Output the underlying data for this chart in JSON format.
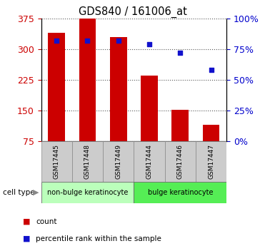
{
  "title": "GDS840 / 161006_at",
  "samples": [
    "GSM17445",
    "GSM17448",
    "GSM17449",
    "GSM17444",
    "GSM17446",
    "GSM17447"
  ],
  "counts": [
    340,
    375,
    330,
    235,
    152,
    115
  ],
  "percentiles": [
    82,
    82,
    82,
    79,
    72,
    58
  ],
  "bar_color": "#cc0000",
  "dot_color": "#1111cc",
  "left_ylim": [
    75,
    375
  ],
  "right_ylim": [
    0,
    100
  ],
  "left_yticks": [
    75,
    150,
    225,
    300,
    375
  ],
  "right_yticks": [
    0,
    25,
    50,
    75,
    100
  ],
  "right_yticklabels": [
    "0%",
    "25%",
    "50%",
    "75%",
    "100%"
  ],
  "group1_label": "non-bulge keratinocyte",
  "group2_label": "bulge keratinocyte",
  "group1_color": "#bbffbb",
  "group2_color": "#55ee55",
  "cell_type_label": "cell type",
  "legend_count": "count",
  "legend_percentile": "percentile rank within the sample",
  "tick_label_color_left": "#cc0000",
  "tick_label_color_right": "#0000cc",
  "grid_color": "#555555",
  "sample_box_color": "#cccccc",
  "sample_box_edge": "#888888"
}
